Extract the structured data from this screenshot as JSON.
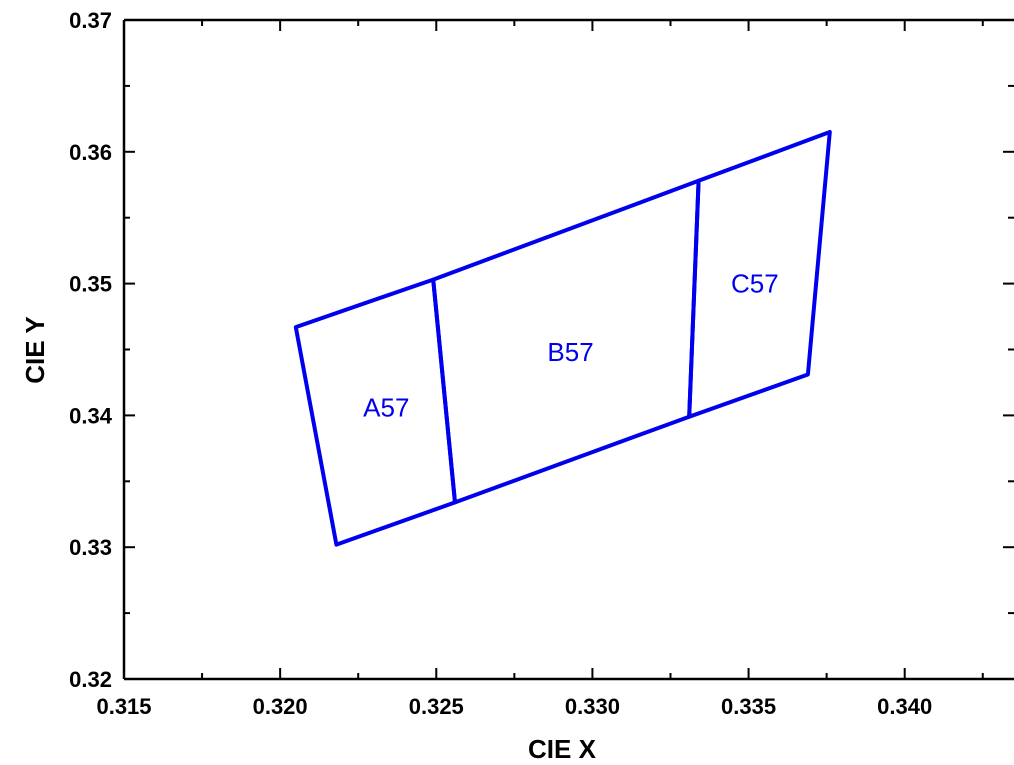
{
  "chart_data": {
    "type": "line",
    "xlabel": "CIE X",
    "ylabel": "CIE Y",
    "xlim": [
      0.315,
      0.3435
    ],
    "ylim": [
      0.32,
      0.37
    ],
    "x_ticks": [
      "0.315",
      "0.320",
      "0.325",
      "0.330",
      "0.335",
      "0.340"
    ],
    "y_ticks": [
      "0.32",
      "0.33",
      "0.34",
      "0.35",
      "0.36",
      "0.37"
    ],
    "x_tick_values": [
      0.315,
      0.32,
      0.325,
      0.33,
      0.335,
      0.34
    ],
    "y_tick_values": [
      0.32,
      0.33,
      0.34,
      0.35,
      0.36,
      0.37
    ],
    "grid": false,
    "line_color": "#0000ee",
    "regions": [
      {
        "label": "A57",
        "label_pos": [
          0.3234,
          0.3406
        ],
        "vertices": [
          [
            0.3205,
            0.3467
          ],
          [
            0.3249,
            0.3503
          ],
          [
            0.3256,
            0.3334
          ],
          [
            0.3218,
            0.3302
          ]
        ]
      },
      {
        "label": "B57",
        "label_pos": [
          0.3293,
          0.3448
        ],
        "vertices": [
          [
            0.3249,
            0.3503
          ],
          [
            0.3334,
            0.3578
          ],
          [
            0.3331,
            0.3399
          ],
          [
            0.3256,
            0.3334
          ]
        ]
      },
      {
        "label": "C57",
        "label_pos": [
          0.3352,
          0.35
        ],
        "vertices": [
          [
            0.3334,
            0.3578
          ],
          [
            0.3376,
            0.3615
          ],
          [
            0.3369,
            0.3431
          ],
          [
            0.3331,
            0.3399
          ]
        ]
      }
    ]
  }
}
